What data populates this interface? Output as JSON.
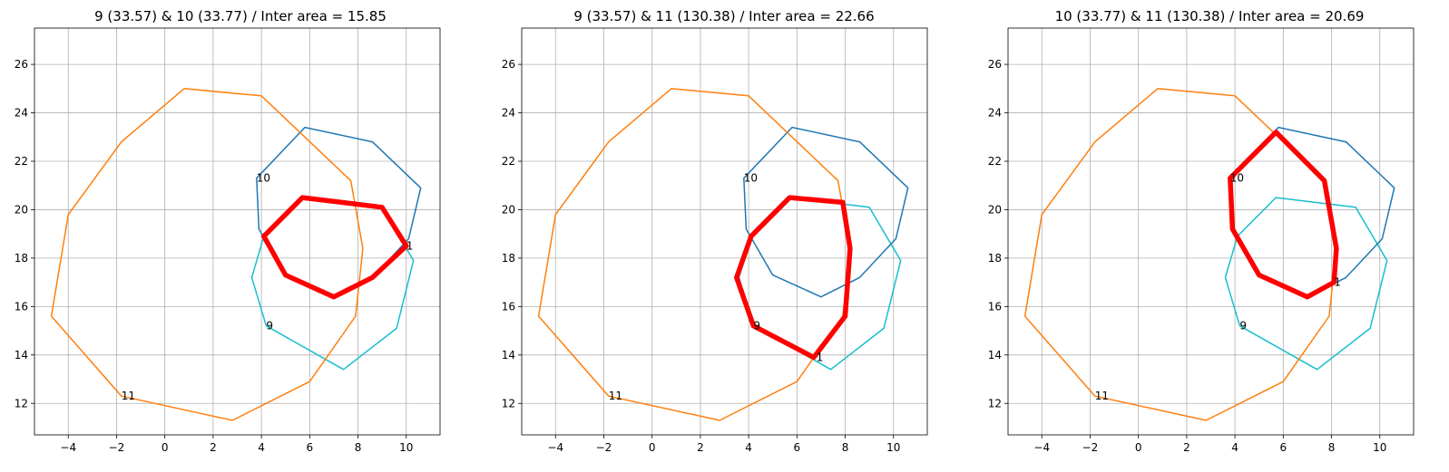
{
  "colors": {
    "poly_9": "#17becf",
    "poly_10": "#1f77b4",
    "poly_11": "#ff7f0e",
    "intersection": "#ff0000",
    "grid": "#b0b0b0"
  },
  "chart_data": [
    {
      "type": "line",
      "title": "9 (33.57) & 10 (33.77) / Inter area = 15.85",
      "xlim": [
        -5.4,
        11.4
      ],
      "ylim": [
        10.7,
        27.5
      ],
      "xticks": [
        -4,
        -2,
        0,
        2,
        4,
        6,
        8,
        10
      ],
      "yticks": [
        12,
        14,
        16,
        18,
        20,
        22,
        24,
        26
      ],
      "grid": true,
      "series": [
        {
          "color": "#17becf",
          "linewidth": 1.5,
          "closed": true,
          "points": [
            [
              4.2,
              15.2
            ],
            [
              7.4,
              13.4
            ],
            [
              9.6,
              15.1
            ],
            [
              10.3,
              17.9
            ],
            [
              9.0,
              20.1
            ],
            [
              5.7,
              20.5
            ],
            [
              4.1,
              18.9
            ],
            [
              3.6,
              17.2
            ]
          ]
        },
        {
          "color": "#1f77b4",
          "linewidth": 1.5,
          "closed": true,
          "points": [
            [
              3.8,
              21.3
            ],
            [
              5.8,
              23.4
            ],
            [
              8.6,
              22.8
            ],
            [
              10.6,
              20.9
            ],
            [
              10.1,
              18.8
            ],
            [
              8.6,
              17.2
            ],
            [
              7.0,
              16.4
            ],
            [
              5.0,
              17.3
            ],
            [
              3.9,
              19.2
            ]
          ]
        },
        {
          "color": "#ff7f0e",
          "linewidth": 1.5,
          "closed": true,
          "points": [
            [
              0.8,
              25.0
            ],
            [
              4.0,
              24.7
            ],
            [
              7.7,
              21.2
            ],
            [
              8.2,
              18.4
            ],
            [
              7.9,
              15.6
            ],
            [
              6.0,
              12.9
            ],
            [
              2.8,
              11.3
            ],
            [
              -1.8,
              12.3
            ],
            [
              -4.7,
              15.6
            ],
            [
              -4.0,
              19.8
            ],
            [
              -1.8,
              22.8
            ]
          ]
        },
        {
          "color": "#ff0000",
          "linewidth": 5.5,
          "closed": true,
          "points": [
            [
              5.7,
              20.5
            ],
            [
              9.0,
              20.1
            ],
            [
              10.0,
              18.5
            ],
            [
              8.6,
              17.2
            ],
            [
              7.0,
              16.4
            ],
            [
              5.0,
              17.3
            ],
            [
              4.1,
              18.9
            ]
          ]
        }
      ],
      "annotations": [
        {
          "text": "10",
          "x": 3.8,
          "y": 21.3
        },
        {
          "text": "1",
          "x": 10.0,
          "y": 18.5
        },
        {
          "text": "9",
          "x": 4.2,
          "y": 15.2
        },
        {
          "text": "11",
          "x": -1.8,
          "y": 12.3
        }
      ]
    },
    {
      "type": "line",
      "title": "9 (33.57) & 11 (130.38) / Inter area = 22.66",
      "xlim": [
        -5.4,
        11.4
      ],
      "ylim": [
        10.7,
        27.5
      ],
      "xticks": [
        -4,
        -2,
        0,
        2,
        4,
        6,
        8,
        10
      ],
      "yticks": [
        12,
        14,
        16,
        18,
        20,
        22,
        24,
        26
      ],
      "grid": true,
      "series": [
        {
          "color": "#17becf",
          "linewidth": 1.5,
          "closed": true,
          "points": [
            [
              4.2,
              15.2
            ],
            [
              7.4,
              13.4
            ],
            [
              9.6,
              15.1
            ],
            [
              10.3,
              17.9
            ],
            [
              9.0,
              20.1
            ],
            [
              5.7,
              20.5
            ],
            [
              4.1,
              18.9
            ],
            [
              3.6,
              17.2
            ]
          ]
        },
        {
          "color": "#1f77b4",
          "linewidth": 1.5,
          "closed": true,
          "points": [
            [
              3.8,
              21.3
            ],
            [
              5.8,
              23.4
            ],
            [
              8.6,
              22.8
            ],
            [
              10.6,
              20.9
            ],
            [
              10.1,
              18.8
            ],
            [
              8.6,
              17.2
            ],
            [
              7.0,
              16.4
            ],
            [
              5.0,
              17.3
            ],
            [
              3.9,
              19.2
            ]
          ]
        },
        {
          "color": "#ff7f0e",
          "linewidth": 1.5,
          "closed": true,
          "points": [
            [
              0.8,
              25.0
            ],
            [
              4.0,
              24.7
            ],
            [
              7.7,
              21.2
            ],
            [
              8.2,
              18.4
            ],
            [
              7.9,
              15.6
            ],
            [
              6.0,
              12.9
            ],
            [
              2.8,
              11.3
            ],
            [
              -1.8,
              12.3
            ],
            [
              -4.7,
              15.6
            ],
            [
              -4.0,
              19.8
            ],
            [
              -1.8,
              22.8
            ]
          ]
        },
        {
          "color": "#ff0000",
          "linewidth": 5.5,
          "closed": true,
          "points": [
            [
              5.7,
              20.5
            ],
            [
              7.9,
              20.3
            ],
            [
              8.2,
              18.4
            ],
            [
              8.0,
              15.6
            ],
            [
              6.7,
              13.9
            ],
            [
              4.2,
              15.2
            ],
            [
              3.5,
              17.2
            ],
            [
              4.1,
              18.9
            ]
          ]
        }
      ],
      "annotations": [
        {
          "text": "10",
          "x": 3.8,
          "y": 21.3
        },
        {
          "text": "9",
          "x": 4.2,
          "y": 15.2
        },
        {
          "text": "1",
          "x": 6.8,
          "y": 13.9
        },
        {
          "text": "11",
          "x": -1.8,
          "y": 12.3
        }
      ]
    },
    {
      "type": "line",
      "title": "10 (33.77) & 11 (130.38) / Inter area = 20.69",
      "xlim": [
        -5.4,
        11.4
      ],
      "ylim": [
        10.7,
        27.5
      ],
      "xticks": [
        -4,
        -2,
        0,
        2,
        4,
        6,
        8,
        10
      ],
      "yticks": [
        12,
        14,
        16,
        18,
        20,
        22,
        24,
        26
      ],
      "grid": true,
      "series": [
        {
          "color": "#17becf",
          "linewidth": 1.5,
          "closed": true,
          "points": [
            [
              4.2,
              15.2
            ],
            [
              7.4,
              13.4
            ],
            [
              9.6,
              15.1
            ],
            [
              10.3,
              17.9
            ],
            [
              9.0,
              20.1
            ],
            [
              5.7,
              20.5
            ],
            [
              4.1,
              18.9
            ],
            [
              3.6,
              17.2
            ]
          ]
        },
        {
          "color": "#1f77b4",
          "linewidth": 1.5,
          "closed": true,
          "points": [
            [
              3.8,
              21.3
            ],
            [
              5.8,
              23.4
            ],
            [
              8.6,
              22.8
            ],
            [
              10.6,
              20.9
            ],
            [
              10.1,
              18.8
            ],
            [
              8.6,
              17.2
            ],
            [
              7.0,
              16.4
            ],
            [
              5.0,
              17.3
            ],
            [
              3.9,
              19.2
            ]
          ]
        },
        {
          "color": "#ff7f0e",
          "linewidth": 1.5,
          "closed": true,
          "points": [
            [
              0.8,
              25.0
            ],
            [
              4.0,
              24.7
            ],
            [
              7.7,
              21.2
            ],
            [
              8.2,
              18.4
            ],
            [
              7.9,
              15.6
            ],
            [
              6.0,
              12.9
            ],
            [
              2.8,
              11.3
            ],
            [
              -1.8,
              12.3
            ],
            [
              -4.7,
              15.6
            ],
            [
              -4.0,
              19.8
            ],
            [
              -1.8,
              22.8
            ]
          ]
        },
        {
          "color": "#ff0000",
          "linewidth": 5.5,
          "closed": true,
          "points": [
            [
              5.7,
              23.2
            ],
            [
              7.7,
              21.2
            ],
            [
              8.2,
              18.4
            ],
            [
              8.1,
              17.0
            ],
            [
              7.0,
              16.4
            ],
            [
              5.0,
              17.3
            ],
            [
              3.9,
              19.2
            ],
            [
              3.8,
              21.3
            ]
          ]
        }
      ],
      "annotations": [
        {
          "text": "10",
          "x": 3.8,
          "y": 21.3
        },
        {
          "text": "1",
          "x": 8.1,
          "y": 17.0
        },
        {
          "text": "9",
          "x": 4.2,
          "y": 15.2
        },
        {
          "text": "11",
          "x": -1.8,
          "y": 12.3
        }
      ]
    }
  ]
}
